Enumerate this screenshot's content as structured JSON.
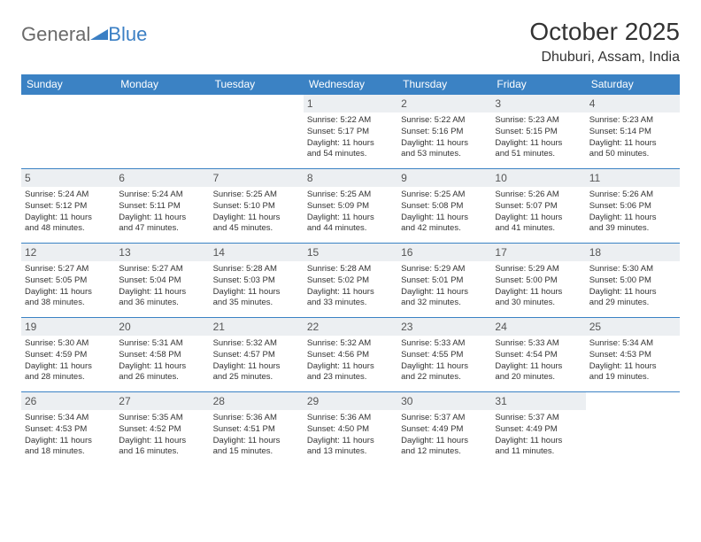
{
  "logo": {
    "text1": "General",
    "text2": "Blue"
  },
  "title": "October 2025",
  "location": "Dhuburi, Assam, India",
  "colors": {
    "header_bg": "#3b82c4",
    "header_text": "#ffffff",
    "daynum_bg": "#eceff2",
    "border": "#3b82c4",
    "logo_gray": "#6a6a6a",
    "logo_blue": "#3b7fc4"
  },
  "weekdays": [
    "Sunday",
    "Monday",
    "Tuesday",
    "Wednesday",
    "Thursday",
    "Friday",
    "Saturday"
  ],
  "weeks": [
    [
      {
        "n": "",
        "empty": true
      },
      {
        "n": "",
        "empty": true
      },
      {
        "n": "",
        "empty": true
      },
      {
        "n": "1",
        "sr": "Sunrise: 5:22 AM",
        "ss": "Sunset: 5:17 PM",
        "d1": "Daylight: 11 hours",
        "d2": "and 54 minutes."
      },
      {
        "n": "2",
        "sr": "Sunrise: 5:22 AM",
        "ss": "Sunset: 5:16 PM",
        "d1": "Daylight: 11 hours",
        "d2": "and 53 minutes."
      },
      {
        "n": "3",
        "sr": "Sunrise: 5:23 AM",
        "ss": "Sunset: 5:15 PM",
        "d1": "Daylight: 11 hours",
        "d2": "and 51 minutes."
      },
      {
        "n": "4",
        "sr": "Sunrise: 5:23 AM",
        "ss": "Sunset: 5:14 PM",
        "d1": "Daylight: 11 hours",
        "d2": "and 50 minutes."
      }
    ],
    [
      {
        "n": "5",
        "sr": "Sunrise: 5:24 AM",
        "ss": "Sunset: 5:12 PM",
        "d1": "Daylight: 11 hours",
        "d2": "and 48 minutes."
      },
      {
        "n": "6",
        "sr": "Sunrise: 5:24 AM",
        "ss": "Sunset: 5:11 PM",
        "d1": "Daylight: 11 hours",
        "d2": "and 47 minutes."
      },
      {
        "n": "7",
        "sr": "Sunrise: 5:25 AM",
        "ss": "Sunset: 5:10 PM",
        "d1": "Daylight: 11 hours",
        "d2": "and 45 minutes."
      },
      {
        "n": "8",
        "sr": "Sunrise: 5:25 AM",
        "ss": "Sunset: 5:09 PM",
        "d1": "Daylight: 11 hours",
        "d2": "and 44 minutes."
      },
      {
        "n": "9",
        "sr": "Sunrise: 5:25 AM",
        "ss": "Sunset: 5:08 PM",
        "d1": "Daylight: 11 hours",
        "d2": "and 42 minutes."
      },
      {
        "n": "10",
        "sr": "Sunrise: 5:26 AM",
        "ss": "Sunset: 5:07 PM",
        "d1": "Daylight: 11 hours",
        "d2": "and 41 minutes."
      },
      {
        "n": "11",
        "sr": "Sunrise: 5:26 AM",
        "ss": "Sunset: 5:06 PM",
        "d1": "Daylight: 11 hours",
        "d2": "and 39 minutes."
      }
    ],
    [
      {
        "n": "12",
        "sr": "Sunrise: 5:27 AM",
        "ss": "Sunset: 5:05 PM",
        "d1": "Daylight: 11 hours",
        "d2": "and 38 minutes."
      },
      {
        "n": "13",
        "sr": "Sunrise: 5:27 AM",
        "ss": "Sunset: 5:04 PM",
        "d1": "Daylight: 11 hours",
        "d2": "and 36 minutes."
      },
      {
        "n": "14",
        "sr": "Sunrise: 5:28 AM",
        "ss": "Sunset: 5:03 PM",
        "d1": "Daylight: 11 hours",
        "d2": "and 35 minutes."
      },
      {
        "n": "15",
        "sr": "Sunrise: 5:28 AM",
        "ss": "Sunset: 5:02 PM",
        "d1": "Daylight: 11 hours",
        "d2": "and 33 minutes."
      },
      {
        "n": "16",
        "sr": "Sunrise: 5:29 AM",
        "ss": "Sunset: 5:01 PM",
        "d1": "Daylight: 11 hours",
        "d2": "and 32 minutes."
      },
      {
        "n": "17",
        "sr": "Sunrise: 5:29 AM",
        "ss": "Sunset: 5:00 PM",
        "d1": "Daylight: 11 hours",
        "d2": "and 30 minutes."
      },
      {
        "n": "18",
        "sr": "Sunrise: 5:30 AM",
        "ss": "Sunset: 5:00 PM",
        "d1": "Daylight: 11 hours",
        "d2": "and 29 minutes."
      }
    ],
    [
      {
        "n": "19",
        "sr": "Sunrise: 5:30 AM",
        "ss": "Sunset: 4:59 PM",
        "d1": "Daylight: 11 hours",
        "d2": "and 28 minutes."
      },
      {
        "n": "20",
        "sr": "Sunrise: 5:31 AM",
        "ss": "Sunset: 4:58 PM",
        "d1": "Daylight: 11 hours",
        "d2": "and 26 minutes."
      },
      {
        "n": "21",
        "sr": "Sunrise: 5:32 AM",
        "ss": "Sunset: 4:57 PM",
        "d1": "Daylight: 11 hours",
        "d2": "and 25 minutes."
      },
      {
        "n": "22",
        "sr": "Sunrise: 5:32 AM",
        "ss": "Sunset: 4:56 PM",
        "d1": "Daylight: 11 hours",
        "d2": "and 23 minutes."
      },
      {
        "n": "23",
        "sr": "Sunrise: 5:33 AM",
        "ss": "Sunset: 4:55 PM",
        "d1": "Daylight: 11 hours",
        "d2": "and 22 minutes."
      },
      {
        "n": "24",
        "sr": "Sunrise: 5:33 AM",
        "ss": "Sunset: 4:54 PM",
        "d1": "Daylight: 11 hours",
        "d2": "and 20 minutes."
      },
      {
        "n": "25",
        "sr": "Sunrise: 5:34 AM",
        "ss": "Sunset: 4:53 PM",
        "d1": "Daylight: 11 hours",
        "d2": "and 19 minutes."
      }
    ],
    [
      {
        "n": "26",
        "sr": "Sunrise: 5:34 AM",
        "ss": "Sunset: 4:53 PM",
        "d1": "Daylight: 11 hours",
        "d2": "and 18 minutes."
      },
      {
        "n": "27",
        "sr": "Sunrise: 5:35 AM",
        "ss": "Sunset: 4:52 PM",
        "d1": "Daylight: 11 hours",
        "d2": "and 16 minutes."
      },
      {
        "n": "28",
        "sr": "Sunrise: 5:36 AM",
        "ss": "Sunset: 4:51 PM",
        "d1": "Daylight: 11 hours",
        "d2": "and 15 minutes."
      },
      {
        "n": "29",
        "sr": "Sunrise: 5:36 AM",
        "ss": "Sunset: 4:50 PM",
        "d1": "Daylight: 11 hours",
        "d2": "and 13 minutes."
      },
      {
        "n": "30",
        "sr": "Sunrise: 5:37 AM",
        "ss": "Sunset: 4:49 PM",
        "d1": "Daylight: 11 hours",
        "d2": "and 12 minutes."
      },
      {
        "n": "31",
        "sr": "Sunrise: 5:37 AM",
        "ss": "Sunset: 4:49 PM",
        "d1": "Daylight: 11 hours",
        "d2": "and 11 minutes."
      },
      {
        "n": "",
        "empty": true
      }
    ]
  ]
}
